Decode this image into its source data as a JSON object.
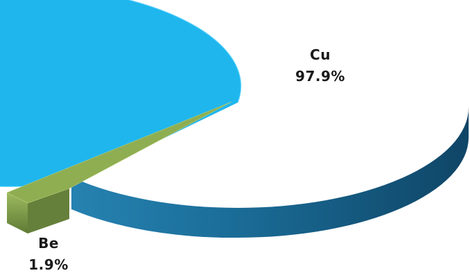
{
  "chart_data": {
    "type": "pie",
    "style": "3d",
    "title": "",
    "slices": [
      {
        "name": "Cu",
        "value": 97.9,
        "label_value": "97.9%",
        "color": "#1fb6ee",
        "side_color": "#1a6f99",
        "exploded": false
      },
      {
        "name": "Be",
        "value": 1.9,
        "label_value": "1.9%",
        "color": "#8fae52",
        "side_color": "#65803a",
        "exploded": true
      }
    ],
    "legend": "none",
    "data_labels": "category and percentage"
  }
}
